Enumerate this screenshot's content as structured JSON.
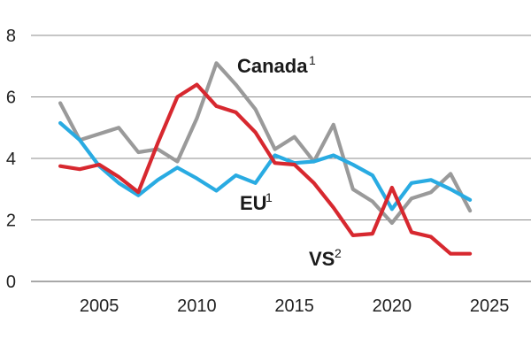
{
  "chart_data": {
    "type": "line",
    "title": "",
    "xlabel": "",
    "ylabel": "",
    "xlim": [
      2001.5,
      2028
    ],
    "ylim": [
      0,
      8
    ],
    "x_ticks": [
      2005,
      2010,
      2015,
      2020,
      2025
    ],
    "y_ticks": [
      0,
      2,
      4,
      6,
      8
    ],
    "grid": "horizontal",
    "series": [
      {
        "name": "Canada",
        "superscript": "1",
        "color": "#9a9a9a",
        "x": [
          2003,
          2004,
          2005,
          2006,
          2007,
          2008,
          2009,
          2010,
          2011,
          2012,
          2013,
          2014,
          2015,
          2016,
          2017,
          2018,
          2019,
          2020,
          2021,
          2022,
          2023,
          2024
        ],
        "values": [
          5.8,
          4.6,
          4.8,
          5.0,
          4.2,
          4.3,
          3.9,
          5.3,
          7.1,
          6.4,
          5.6,
          4.3,
          4.7,
          3.9,
          5.1,
          3.0,
          2.6,
          1.9,
          2.7,
          2.9,
          3.5,
          2.3
        ]
      },
      {
        "name": "EU",
        "superscript": "1",
        "color": "#29abe2",
        "x": [
          2003,
          2004,
          2005,
          2006,
          2007,
          2008,
          2009,
          2010,
          2011,
          2012,
          2013,
          2014,
          2015,
          2016,
          2017,
          2018,
          2019,
          2020,
          2021,
          2022,
          2023,
          2024
        ],
        "values": [
          5.15,
          4.6,
          3.75,
          3.2,
          2.8,
          3.3,
          3.7,
          3.35,
          2.95,
          3.45,
          3.2,
          4.1,
          3.85,
          3.9,
          4.1,
          3.8,
          3.45,
          2.35,
          3.2,
          3.3,
          3.0,
          2.65
        ]
      },
      {
        "name": "VS",
        "superscript": "2",
        "color": "#d7282f",
        "x": [
          2003,
          2004,
          2005,
          2006,
          2007,
          2008,
          2009,
          2010,
          2011,
          2012,
          2013,
          2014,
          2015,
          2016,
          2017,
          2018,
          2019,
          2020,
          2021,
          2022,
          2023,
          2024
        ],
        "values": [
          3.75,
          3.65,
          3.8,
          3.4,
          2.9,
          4.5,
          6.0,
          6.4,
          5.7,
          5.5,
          4.85,
          3.85,
          3.8,
          3.2,
          2.4,
          1.5,
          1.55,
          3.05,
          1.6,
          1.45,
          0.9,
          0.9
        ]
      }
    ]
  }
}
